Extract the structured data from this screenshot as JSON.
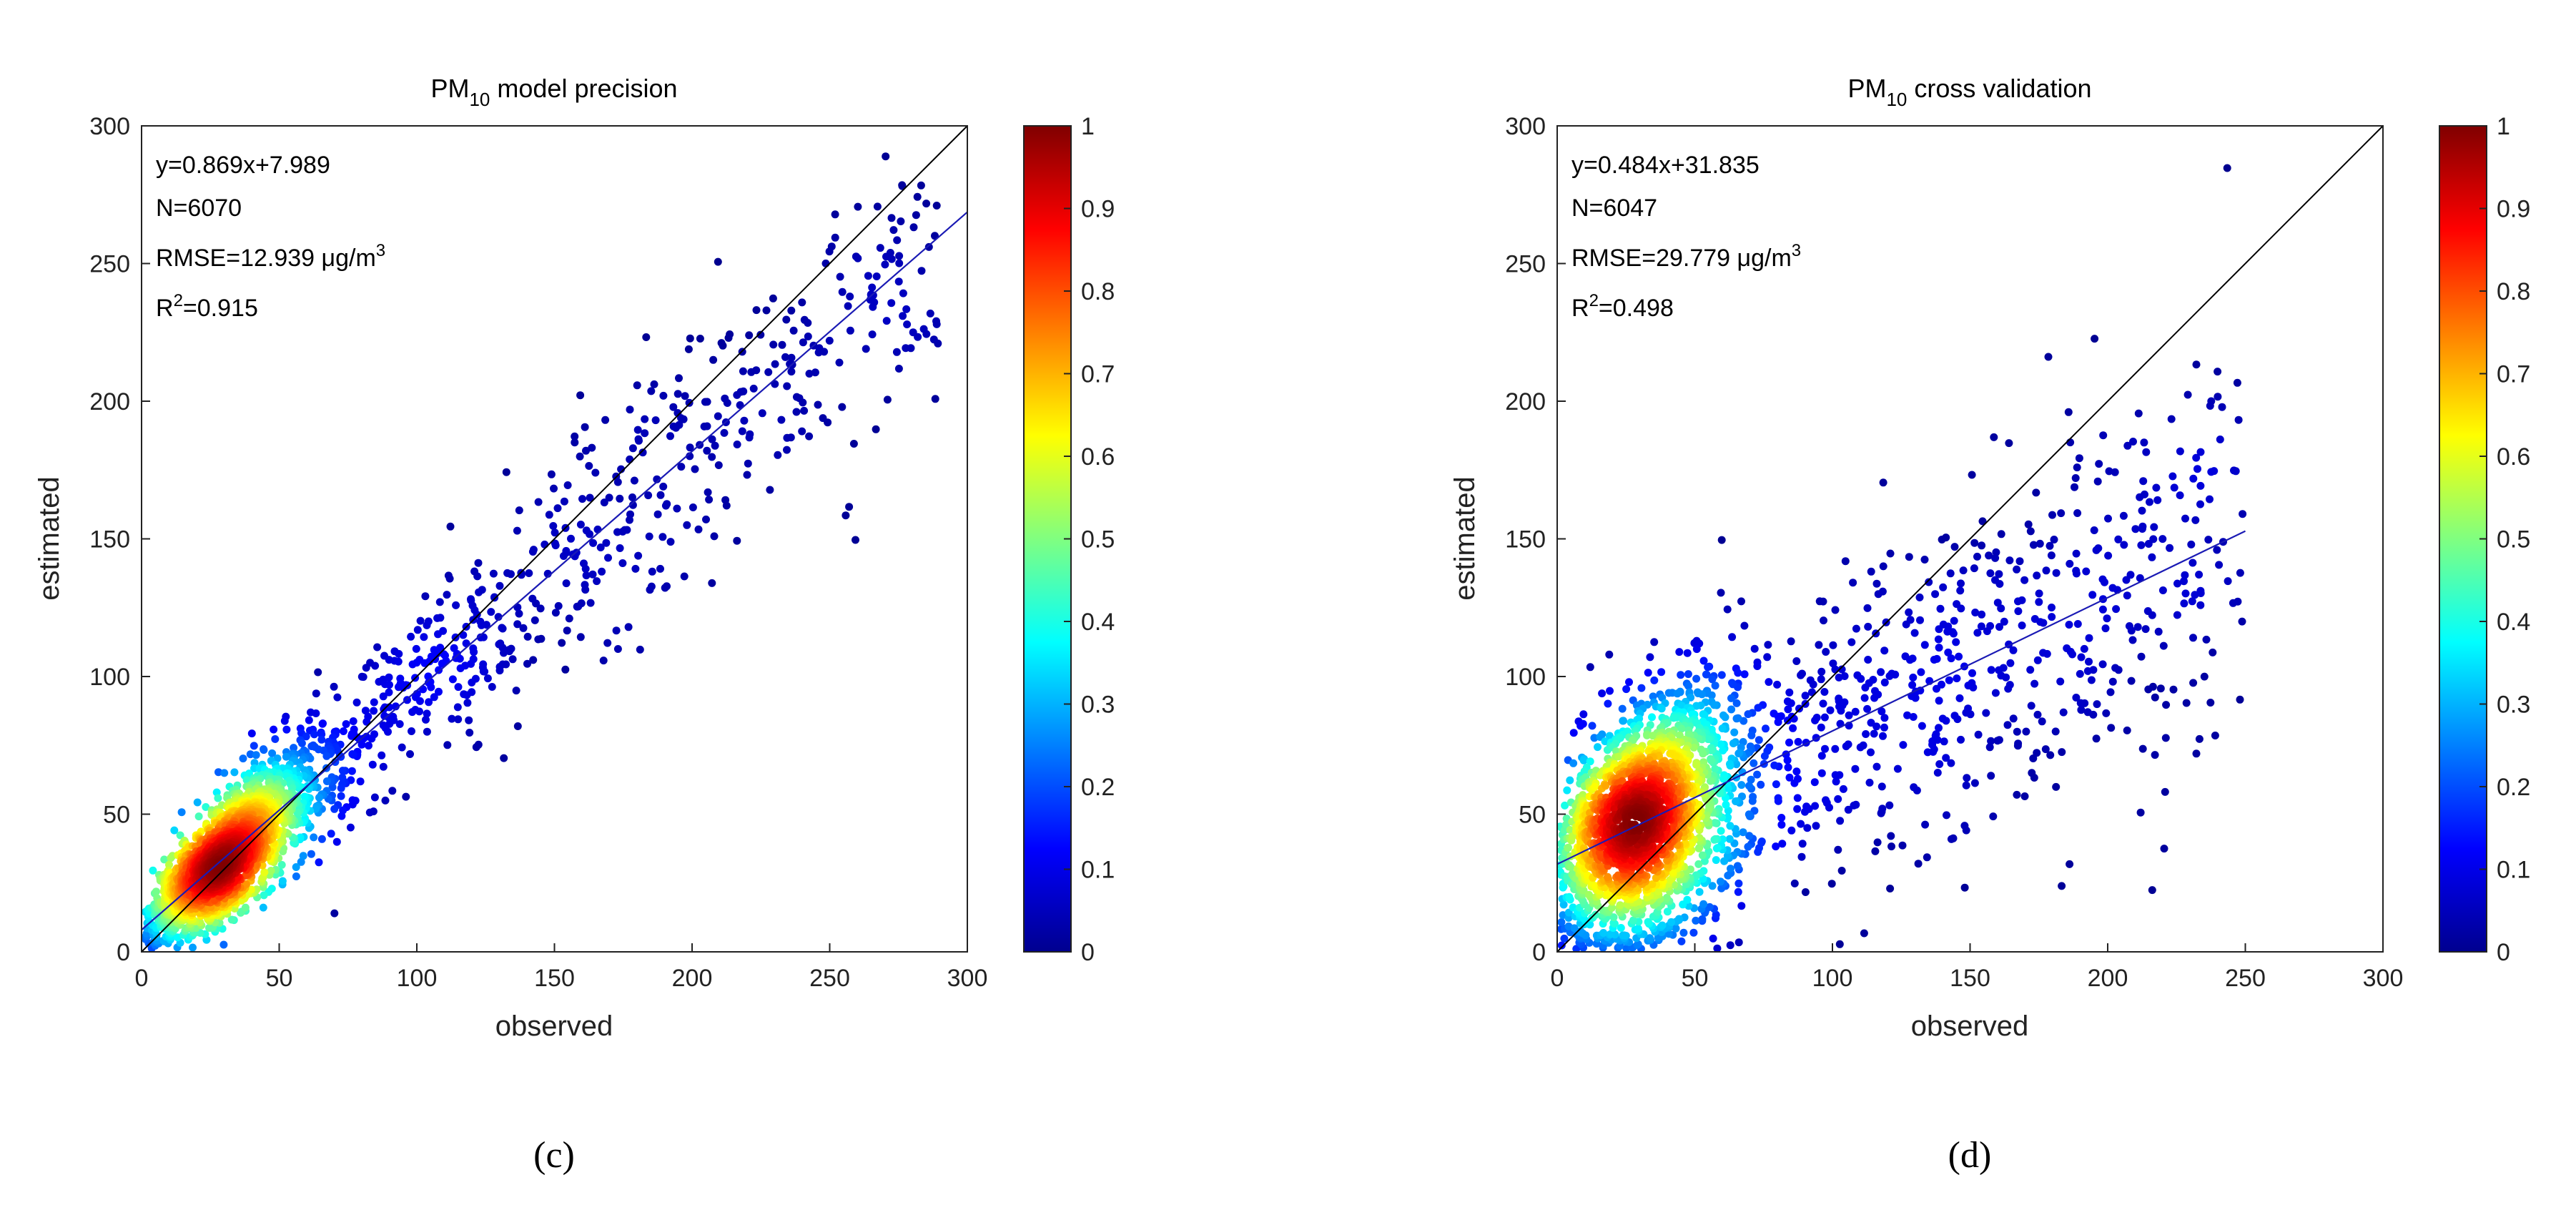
{
  "colorbar": {
    "ticks": [
      "0",
      "0.1",
      "0.2",
      "0.3",
      "0.4",
      "0.5",
      "0.6",
      "0.7",
      "0.8",
      "0.9",
      "1"
    ],
    "stops": [
      "#00008f",
      "#0000ff",
      "#0080ff",
      "#00ffff",
      "#80ff80",
      "#ffff00",
      "#ff8000",
      "#ff0000",
      "#800000"
    ]
  },
  "colors": {
    "one_to_one_line": "#000000",
    "fit_line": "#1a1ab4",
    "axis": "#222222"
  },
  "chart_data": [
    {
      "type": "scatter",
      "panel_label": "(c)",
      "title": {
        "prefix": "PM",
        "sub": "10",
        "suffix": " model precision"
      },
      "xlabel": "observed",
      "ylabel": "estimated",
      "xlim": [
        0,
        300
      ],
      "ylim": [
        0,
        300
      ],
      "xticks": [
        0,
        50,
        100,
        150,
        200,
        250,
        300
      ],
      "yticks": [
        0,
        50,
        100,
        150,
        200,
        250,
        300
      ],
      "fit": {
        "slope": 0.869,
        "intercept": 7.989,
        "x_range": [
          0,
          300
        ]
      },
      "one_to_one": {
        "x_range": [
          0,
          300
        ]
      },
      "annotations": {
        "equation": "y=0.869x+7.989",
        "n": "N=6070",
        "rmse_text": "RMSE=12.939 μg/m",
        "rmse_sup": "3",
        "r2_prefix": "R",
        "r2_sup": "2",
        "r2_value": "=0.915"
      },
      "points": {
        "count_rendered": 2600,
        "core_center": [
          33,
          38
        ],
        "core_spread": [
          14,
          13
        ],
        "residual_sd": 12.9,
        "x_max": 290
      },
      "density_colored": true
    },
    {
      "type": "scatter",
      "panel_label": "(d)",
      "title": {
        "prefix": "PM",
        "sub": "10",
        "suffix": " cross validation"
      },
      "xlabel": "observed",
      "ylabel": "estimated",
      "xlim": [
        0,
        300
      ],
      "ylim": [
        0,
        300
      ],
      "xticks": [
        0,
        50,
        100,
        150,
        200,
        250,
        300
      ],
      "yticks": [
        0,
        50,
        100,
        150,
        200,
        250,
        300
      ],
      "fit": {
        "slope": 0.484,
        "intercept": 31.835,
        "x_range": [
          0,
          250
        ]
      },
      "one_to_one": {
        "x_range": [
          0,
          300
        ]
      },
      "annotations": {
        "equation": "y=0.484x+31.835",
        "n": "N=6047",
        "rmse_text": "RMSE=29.779 μg/m",
        "rmse_sup": "3",
        "r2_prefix": "R",
        "r2_sup": "2",
        "r2_value": "=0.498"
      },
      "points": {
        "count_rendered": 2600,
        "core_center": [
          33,
          42
        ],
        "core_spread": [
          16,
          15
        ],
        "residual_sd": 24,
        "x_max": 250
      },
      "density_colored": true
    }
  ]
}
